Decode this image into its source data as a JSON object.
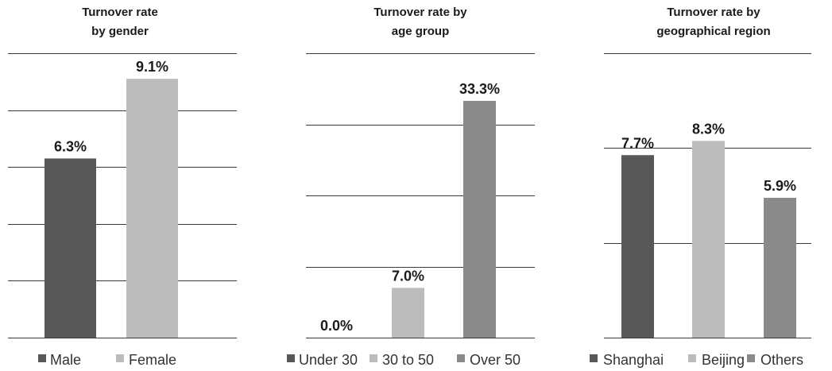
{
  "chart_data": [
    {
      "type": "bar",
      "title": [
        "Turnover rate",
        "by gender"
      ],
      "categories": [
        "Male",
        "Female"
      ],
      "values": [
        6.3,
        9.1
      ],
      "value_labels": [
        "6.3%",
        "9.1%"
      ],
      "colors": [
        "#58585a",
        "#bcbcbe"
      ],
      "ylim": [
        0,
        10
      ],
      "grid_step": 2,
      "grid": true,
      "legend": "bottom"
    },
    {
      "type": "bar",
      "title": [
        "Turnover rate by",
        "age group"
      ],
      "categories": [
        "Under 30",
        "30 to 50",
        "Over 50"
      ],
      "values": [
        0.0,
        7.0,
        33.3
      ],
      "value_labels": [
        "0.0%",
        "7.0%",
        "33.3%"
      ],
      "colors": [
        "#58585a",
        "#bcbcbe",
        "#8a8a8d"
      ],
      "ylim": [
        0,
        40
      ],
      "grid_step": 10,
      "grid": true,
      "legend": "bottom"
    },
    {
      "type": "bar",
      "title": [
        "Turnover rate by",
        "geographical region"
      ],
      "categories": [
        "Shanghai",
        "Beijing",
        "Others"
      ],
      "values": [
        7.7,
        8.3,
        5.9
      ],
      "value_labels": [
        "7.7%",
        "8.3%",
        "5.9%"
      ],
      "colors": [
        "#58585a",
        "#bcbcbe",
        "#8a8a8d"
      ],
      "ylim": [
        0,
        12
      ],
      "grid_step": 4,
      "grid": true,
      "legend": "bottom"
    }
  ]
}
